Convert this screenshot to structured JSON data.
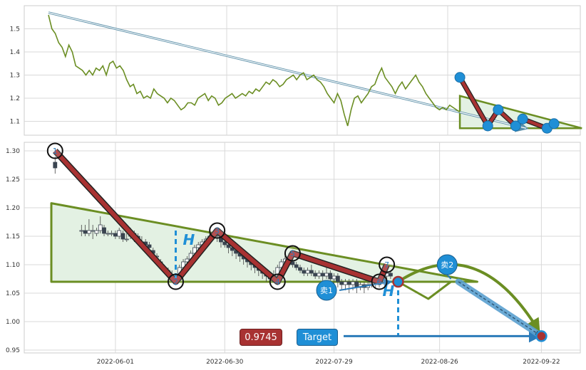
{
  "chart_data": [
    {
      "type": "line",
      "ylim": [
        1.04,
        1.6
      ],
      "yticks": [
        "1.5",
        "1.4",
        "1.3",
        "1.2",
        "1.1"
      ],
      "ytick_values": [
        1.5,
        1.4,
        1.3,
        1.2,
        1.1
      ],
      "xlim_days": [
        0,
        146
      ],
      "series_color": "#6b8e23",
      "series": [
        {
          "values": [
            1.56,
            1.5,
            1.48,
            1.44,
            1.42,
            1.38,
            1.43,
            1.4,
            1.34,
            1.33,
            1.32,
            1.3,
            1.32,
            1.3,
            1.33,
            1.32,
            1.34,
            1.3,
            1.35,
            1.36,
            1.33,
            1.34,
            1.32,
            1.28,
            1.25,
            1.26,
            1.22,
            1.23,
            1.2,
            1.21,
            1.2,
            1.24,
            1.22,
            1.21,
            1.2,
            1.18,
            1.2,
            1.19,
            1.17,
            1.15,
            1.16,
            1.18,
            1.18,
            1.17,
            1.2,
            1.21,
            1.22,
            1.19,
            1.21,
            1.2,
            1.17,
            1.18,
            1.2,
            1.21,
            1.22,
            1.2,
            1.21,
            1.22,
            1.21,
            1.23,
            1.22,
            1.24,
            1.23,
            1.25,
            1.27,
            1.26,
            1.28,
            1.27,
            1.25,
            1.26,
            1.28,
            1.29,
            1.3,
            1.28,
            1.3,
            1.31,
            1.28,
            1.29,
            1.3,
            1.28,
            1.27,
            1.25,
            1.22,
            1.2,
            1.18,
            1.22,
            1.19,
            1.13,
            1.08,
            1.15,
            1.2,
            1.21,
            1.18,
            1.2,
            1.22,
            1.25,
            1.26,
            1.3,
            1.33,
            1.29,
            1.27,
            1.25,
            1.22,
            1.25,
            1.27,
            1.24,
            1.26,
            1.28,
            1.3,
            1.27,
            1.25,
            1.22,
            1.2,
            1.18,
            1.16,
            1.15,
            1.16,
            1.15,
            1.17,
            1.16,
            1.15,
            1.14
          ]
        }
      ],
      "pivots": [
        {
          "day": 118,
          "value": 1.29
        },
        {
          "day": 126,
          "value": 1.08
        },
        {
          "day": 129,
          "value": 1.15
        },
        {
          "day": 134,
          "value": 1.08
        },
        {
          "day": 136,
          "value": 1.11
        },
        {
          "day": 143,
          "value": 1.07
        },
        {
          "day": 145,
          "value": 1.09
        }
      ],
      "trend_arrow": {
        "from": [
          0,
          1.57
        ],
        "to": [
          137,
          1.07
        ]
      },
      "triangle": {
        "top_left": [
          118,
          1.21
        ],
        "bottom_left": [
          118,
          1.07
        ],
        "apex": [
          153,
          1.07
        ]
      }
    },
    {
      "type": "candlestick",
      "ylim": [
        0.945,
        1.315
      ],
      "yticks": [
        "1.30",
        "1.25",
        "1.20",
        "1.15",
        "1.10",
        "1.05",
        "1.00",
        "0.95"
      ],
      "ytick_values": [
        1.3,
        1.25,
        1.2,
        1.15,
        1.1,
        1.05,
        1.0,
        0.95
      ],
      "xlim_days": [
        -17,
        115
      ],
      "xticks": [
        "2022-06-01",
        "2022-06-30",
        "2022-07-29",
        "2022-08-26",
        "2022-09-22"
      ],
      "xtick_days": [
        0,
        29,
        58,
        86,
        113
      ],
      "wave_points": [
        {
          "label": "1",
          "day": -16,
          "value": 1.3
        },
        {
          "label": "2",
          "day": 16,
          "value": 1.07
        },
        {
          "label": "3",
          "day": 27,
          "value": 1.16
        },
        {
          "label": "4",
          "day": 43,
          "value": 1.07
        },
        {
          "label": "5",
          "day": 47,
          "value": 1.12
        },
        {
          "label": "6",
          "day": 70,
          "value": 1.07
        },
        {
          "label": "7",
          "day": 72,
          "value": 1.1
        }
      ],
      "sell_points": [
        {
          "label": "卖1",
          "day": 56,
          "value": 1.055
        },
        {
          "label": "卖2",
          "day": 88,
          "value": 1.1
        }
      ],
      "measure_label": "H",
      "current_price": "0.9745",
      "target_label": "Target",
      "target_value": 0.9745,
      "candles": [
        [
          -16,
          1.28,
          1.27,
          1.29,
          1.26
        ],
        [
          -9,
          1.16,
          1.16,
          1.17,
          1.15
        ],
        [
          -8,
          1.16,
          1.155,
          1.17,
          1.15
        ],
        [
          -7,
          1.155,
          1.16,
          1.18,
          1.15
        ],
        [
          -6,
          1.16,
          1.16,
          1.17,
          1.145
        ],
        [
          -5,
          1.155,
          1.16,
          1.165,
          1.15
        ],
        [
          -4,
          1.16,
          1.17,
          1.185,
          1.155
        ],
        [
          -3,
          1.165,
          1.155,
          1.17,
          1.15
        ],
        [
          -2,
          1.155,
          1.155,
          1.16,
          1.15
        ],
        [
          -1,
          1.155,
          1.155,
          1.16,
          1.15
        ],
        [
          0,
          1.155,
          1.15,
          1.16,
          1.145
        ],
        [
          1,
          1.15,
          1.16,
          1.165,
          1.145
        ],
        [
          2,
          1.155,
          1.145,
          1.16,
          1.14
        ],
        [
          3,
          1.145,
          1.145,
          1.155,
          1.14
        ],
        [
          4,
          1.15,
          1.16,
          1.165,
          1.145
        ],
        [
          5,
          1.155,
          1.15,
          1.16,
          1.14
        ],
        [
          6,
          1.15,
          1.14,
          1.155,
          1.135
        ],
        [
          7,
          1.14,
          1.14,
          1.15,
          1.135
        ],
        [
          8,
          1.14,
          1.135,
          1.145,
          1.13
        ],
        [
          9,
          1.135,
          1.13,
          1.14,
          1.125
        ],
        [
          10,
          1.125,
          1.12,
          1.13,
          1.115
        ],
        [
          11,
          1.115,
          1.115,
          1.12,
          1.105
        ],
        [
          12,
          1.105,
          1.1,
          1.11,
          1.095
        ],
        [
          13,
          1.095,
          1.09,
          1.1,
          1.085
        ],
        [
          14,
          1.09,
          1.085,
          1.095,
          1.08
        ],
        [
          15,
          1.08,
          1.08,
          1.09,
          1.07
        ],
        [
          16,
          1.075,
          1.08,
          1.085,
          1.07
        ],
        [
          17,
          1.08,
          1.095,
          1.1,
          1.075
        ],
        [
          18,
          1.095,
          1.105,
          1.11,
          1.09
        ],
        [
          19,
          1.105,
          1.11,
          1.115,
          1.1
        ],
        [
          20,
          1.11,
          1.12,
          1.125,
          1.105
        ],
        [
          21,
          1.12,
          1.13,
          1.135,
          1.115
        ],
        [
          22,
          1.13,
          1.135,
          1.14,
          1.125
        ],
        [
          23,
          1.135,
          1.14,
          1.145,
          1.13
        ],
        [
          24,
          1.14,
          1.145,
          1.15,
          1.135
        ],
        [
          25,
          1.145,
          1.15,
          1.155,
          1.14
        ],
        [
          26,
          1.15,
          1.155,
          1.16,
          1.145
        ],
        [
          27,
          1.155,
          1.15,
          1.16,
          1.14
        ],
        [
          28,
          1.15,
          1.14,
          1.155,
          1.13
        ],
        [
          29,
          1.14,
          1.135,
          1.145,
          1.13
        ],
        [
          30,
          1.135,
          1.13,
          1.14,
          1.12
        ],
        [
          31,
          1.13,
          1.125,
          1.135,
          1.115
        ],
        [
          32,
          1.125,
          1.12,
          1.13,
          1.11
        ],
        [
          33,
          1.12,
          1.115,
          1.125,
          1.105
        ],
        [
          34,
          1.115,
          1.11,
          1.12,
          1.1
        ],
        [
          35,
          1.11,
          1.105,
          1.115,
          1.095
        ],
        [
          36,
          1.105,
          1.1,
          1.11,
          1.09
        ],
        [
          37,
          1.1,
          1.095,
          1.105,
          1.085
        ],
        [
          38,
          1.095,
          1.09,
          1.1,
          1.08
        ],
        [
          39,
          1.09,
          1.085,
          1.095,
          1.075
        ],
        [
          40,
          1.085,
          1.08,
          1.09,
          1.07
        ],
        [
          41,
          1.08,
          1.075,
          1.085,
          1.07
        ],
        [
          42,
          1.075,
          1.08,
          1.09,
          1.07
        ],
        [
          43,
          1.08,
          1.095,
          1.1,
          1.075
        ],
        [
          44,
          1.095,
          1.105,
          1.11,
          1.09
        ],
        [
          45,
          1.105,
          1.11,
          1.115,
          1.1
        ],
        [
          46,
          1.11,
          1.105,
          1.12,
          1.1
        ],
        [
          47,
          1.105,
          1.1,
          1.11,
          1.095
        ],
        [
          48,
          1.1,
          1.095,
          1.105,
          1.09
        ],
        [
          49,
          1.095,
          1.09,
          1.1,
          1.085
        ],
        [
          50,
          1.09,
          1.085,
          1.095,
          1.08
        ],
        [
          51,
          1.085,
          1.09,
          1.095,
          1.08
        ],
        [
          52,
          1.09,
          1.085,
          1.1,
          1.08
        ],
        [
          53,
          1.085,
          1.08,
          1.09,
          1.075
        ],
        [
          54,
          1.08,
          1.085,
          1.09,
          1.075
        ],
        [
          55,
          1.085,
          1.08,
          1.09,
          1.07
        ],
        [
          56,
          1.08,
          1.085,
          1.1,
          1.075
        ],
        [
          57,
          1.085,
          1.075,
          1.09,
          1.07
        ],
        [
          58,
          1.075,
          1.08,
          1.085,
          1.065
        ],
        [
          59,
          1.08,
          1.07,
          1.085,
          1.06
        ],
        [
          60,
          1.07,
          1.065,
          1.075,
          1.055
        ],
        [
          61,
          1.065,
          1.07,
          1.075,
          1.055
        ],
        [
          62,
          1.07,
          1.065,
          1.075,
          1.05
        ],
        [
          63,
          1.065,
          1.07,
          1.075,
          1.055
        ],
        [
          64,
          1.07,
          1.06,
          1.075,
          1.05
        ],
        [
          65,
          1.06,
          1.065,
          1.07,
          1.055
        ],
        [
          66,
          1.065,
          1.06,
          1.07,
          1.05
        ],
        [
          67,
          1.06,
          1.065,
          1.07,
          1.055
        ],
        [
          68,
          1.065,
          1.07,
          1.075,
          1.06
        ],
        [
          69,
          1.07,
          1.065,
          1.075,
          1.06
        ],
        [
          70,
          1.065,
          1.07,
          1.08,
          1.06
        ],
        [
          71,
          1.07,
          1.08,
          1.085,
          1.065
        ],
        [
          72,
          1.08,
          1.085,
          1.09,
          1.075
        ],
        [
          73,
          1.085,
          1.08,
          1.09,
          1.075
        ]
      ],
      "wedge": {
        "top_left": [
          -17,
          1.208
        ],
        "bottom_left": [
          -17,
          1.07
        ],
        "bottom_right": [
          96,
          1.07
        ]
      },
      "projection_path": [
        [
          75,
          1.07
        ],
        [
          83,
          1.04
        ],
        [
          89,
          1.07
        ]
      ],
      "target_arrow": {
        "from": [
          91,
          1.07
        ],
        "to": [
          113,
          0.9745
        ]
      }
    }
  ]
}
